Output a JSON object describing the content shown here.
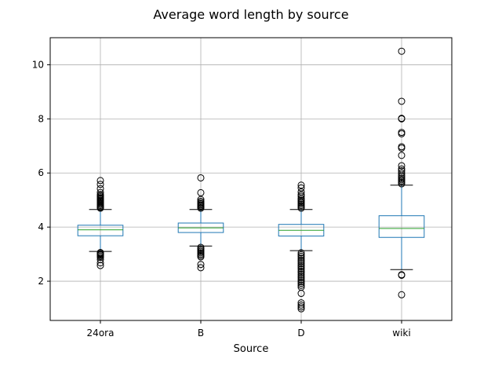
{
  "chart_data": {
    "type": "box",
    "title": "Average word length by source",
    "xlabel": "Source",
    "ylabel": "",
    "categories": [
      "24ora",
      "B",
      "D",
      "wiki"
    ],
    "ylim": [
      0.55,
      11.0
    ],
    "yticks": [
      2,
      4,
      6,
      8,
      10
    ],
    "grid": true,
    "colors": {
      "box": "#1f77b4",
      "median": "#2ca02c",
      "whisker": "#1f77b4",
      "cap": "#000000",
      "flier": "#000000",
      "grid": "#b0b0b0"
    },
    "boxes": [
      {
        "name": "24ora",
        "whislo": 3.1,
        "q1": 3.68,
        "med": 3.9,
        "q3": 4.07,
        "whishi": 4.65,
        "fliers": [
          2.58,
          2.68,
          2.8,
          2.88,
          2.93,
          2.97,
          3.0,
          3.03,
          3.06,
          4.7,
          4.73,
          4.76,
          4.8,
          4.84,
          4.88,
          4.92,
          4.96,
          5.0,
          5.04,
          5.08,
          5.12,
          5.16,
          5.2,
          5.28,
          5.42,
          5.58,
          5.72
        ]
      },
      {
        "name": "B",
        "whislo": 3.3,
        "q1": 3.8,
        "med": 3.97,
        "q3": 4.15,
        "whishi": 4.65,
        "fliers": [
          2.5,
          2.62,
          2.9,
          2.95,
          3.0,
          3.05,
          3.1,
          3.15,
          3.2,
          3.25,
          4.7,
          4.74,
          4.78,
          4.82,
          4.86,
          4.9,
          4.95,
          5.02,
          5.27,
          5.82
        ]
      },
      {
        "name": "D",
        "whislo": 3.13,
        "q1": 3.67,
        "med": 3.88,
        "q3": 4.1,
        "whishi": 4.65,
        "fliers": [
          0.98,
          1.05,
          1.12,
          1.2,
          1.55,
          1.78,
          1.85,
          1.92,
          1.98,
          2.05,
          2.12,
          2.18,
          2.25,
          2.32,
          2.38,
          2.45,
          2.52,
          2.58,
          2.65,
          2.72,
          2.78,
          2.85,
          2.92,
          2.98,
          3.05,
          4.7,
          4.75,
          4.8,
          4.85,
          4.9,
          4.95,
          5.0,
          5.06,
          5.14,
          5.2,
          5.3,
          5.45,
          5.55
        ]
      },
      {
        "name": "wiki",
        "whislo": 2.43,
        "q1": 3.62,
        "med": 3.95,
        "q3": 4.42,
        "whishi": 5.55,
        "fliers": [
          1.5,
          2.22,
          2.24,
          5.6,
          5.65,
          5.7,
          5.75,
          5.8,
          5.86,
          5.92,
          6.0,
          6.08,
          6.15,
          6.27,
          6.65,
          6.92,
          6.97,
          7.45,
          7.5,
          8.0,
          8.02,
          8.65,
          10.5
        ]
      }
    ]
  }
}
